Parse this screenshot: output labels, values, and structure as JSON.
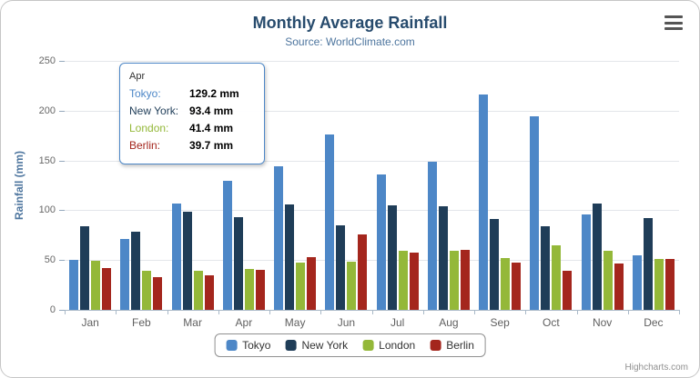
{
  "header": {
    "title": "Monthly Average Rainfall",
    "subtitle": "Source: WorldClimate.com"
  },
  "chart_data": {
    "type": "bar",
    "title": "Monthly Average Rainfall",
    "subtitle": "Source: WorldClimate.com",
    "categories": [
      "Jan",
      "Feb",
      "Mar",
      "Apr",
      "May",
      "Jun",
      "Jul",
      "Aug",
      "Sep",
      "Oct",
      "Nov",
      "Dec"
    ],
    "series": [
      {
        "name": "Tokyo",
        "color": "#4d87c7",
        "values": [
          49.9,
          71.5,
          106.4,
          129.2,
          144.0,
          176.0,
          135.6,
          148.5,
          216.4,
          194.1,
          95.6,
          54.4
        ]
      },
      {
        "name": "New York",
        "color": "#1f3d58",
        "values": [
          83.6,
          78.8,
          98.5,
          93.4,
          106.0,
          84.5,
          105.0,
          104.3,
          91.2,
          83.5,
          106.6,
          92.3
        ]
      },
      {
        "name": "London",
        "color": "#94b839",
        "values": [
          48.9,
          38.8,
          39.3,
          41.4,
          47.0,
          48.3,
          59.0,
          59.6,
          52.4,
          65.2,
          59.3,
          51.2
        ]
      },
      {
        "name": "Berlin",
        "color": "#a4261d",
        "values": [
          42.4,
          33.2,
          34.5,
          39.7,
          52.6,
          75.5,
          57.4,
          60.4,
          47.6,
          39.1,
          46.8,
          51.1
        ]
      }
    ],
    "xlabel": "",
    "ylabel": "Rainfall (mm)",
    "ylim": [
      0,
      250
    ],
    "ytick_interval": 50,
    "grid": true,
    "legend_position": "bottom"
  },
  "tooltip": {
    "header": "Apr",
    "rows": [
      {
        "name": "Tokyo",
        "value": "129.2 mm"
      },
      {
        "name": "New York",
        "value": "93.4 mm"
      },
      {
        "name": "London",
        "value": "41.4 mm"
      },
      {
        "name": "Berlin",
        "value": "39.7 mm"
      }
    ]
  },
  "credits": "Highcharts.com"
}
